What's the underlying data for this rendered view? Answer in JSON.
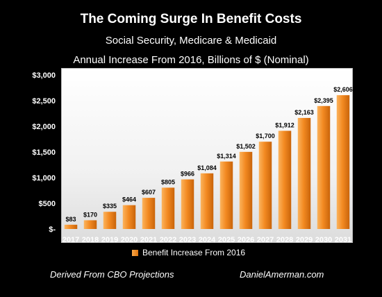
{
  "chart_data": {
    "type": "bar",
    "title": "The Coming Surge In Benefit Costs",
    "subtitle": "Social Security, Medicare & Medicaid",
    "subtitle2": "Annual Increase From 2016, Billions of $ (Nominal)",
    "categories": [
      "2017",
      "2018",
      "2019",
      "2020",
      "2021",
      "2022",
      "2023",
      "2024",
      "2025",
      "2026",
      "2027",
      "2028",
      "2029",
      "2030",
      "2031"
    ],
    "series": [
      {
        "name": "Benefit Increase From 2016",
        "values": [
          83,
          170,
          335,
          464,
          607,
          805,
          966,
          1084,
          1314,
          1502,
          1700,
          1912,
          2163,
          2395,
          2606
        ],
        "data_labels": [
          "$83",
          "$170",
          "$335",
          "$464",
          "$607",
          "$805",
          "$966",
          "$1,084",
          "$1,314",
          "$1,502",
          "$1,700",
          "$1,912",
          "$2,163",
          "$2,395",
          "$2,606"
        ],
        "color": "#f0861c"
      }
    ],
    "ylim": [
      0,
      3000
    ],
    "yticks": [
      0,
      500,
      1000,
      1500,
      2000,
      2500,
      3000
    ],
    "ytick_labels": [
      "$-",
      "$500",
      "$1,000",
      "$1,500",
      "$2,000",
      "$2,500",
      "$3,000"
    ],
    "xlabel": "",
    "ylabel": "",
    "grid": false,
    "legend_position": "bottom"
  },
  "footer": {
    "source": "Derived From CBO Projections",
    "site": "DanielAmerman.com"
  },
  "colors": {
    "background": "#000000",
    "bar": "#f0861c"
  }
}
